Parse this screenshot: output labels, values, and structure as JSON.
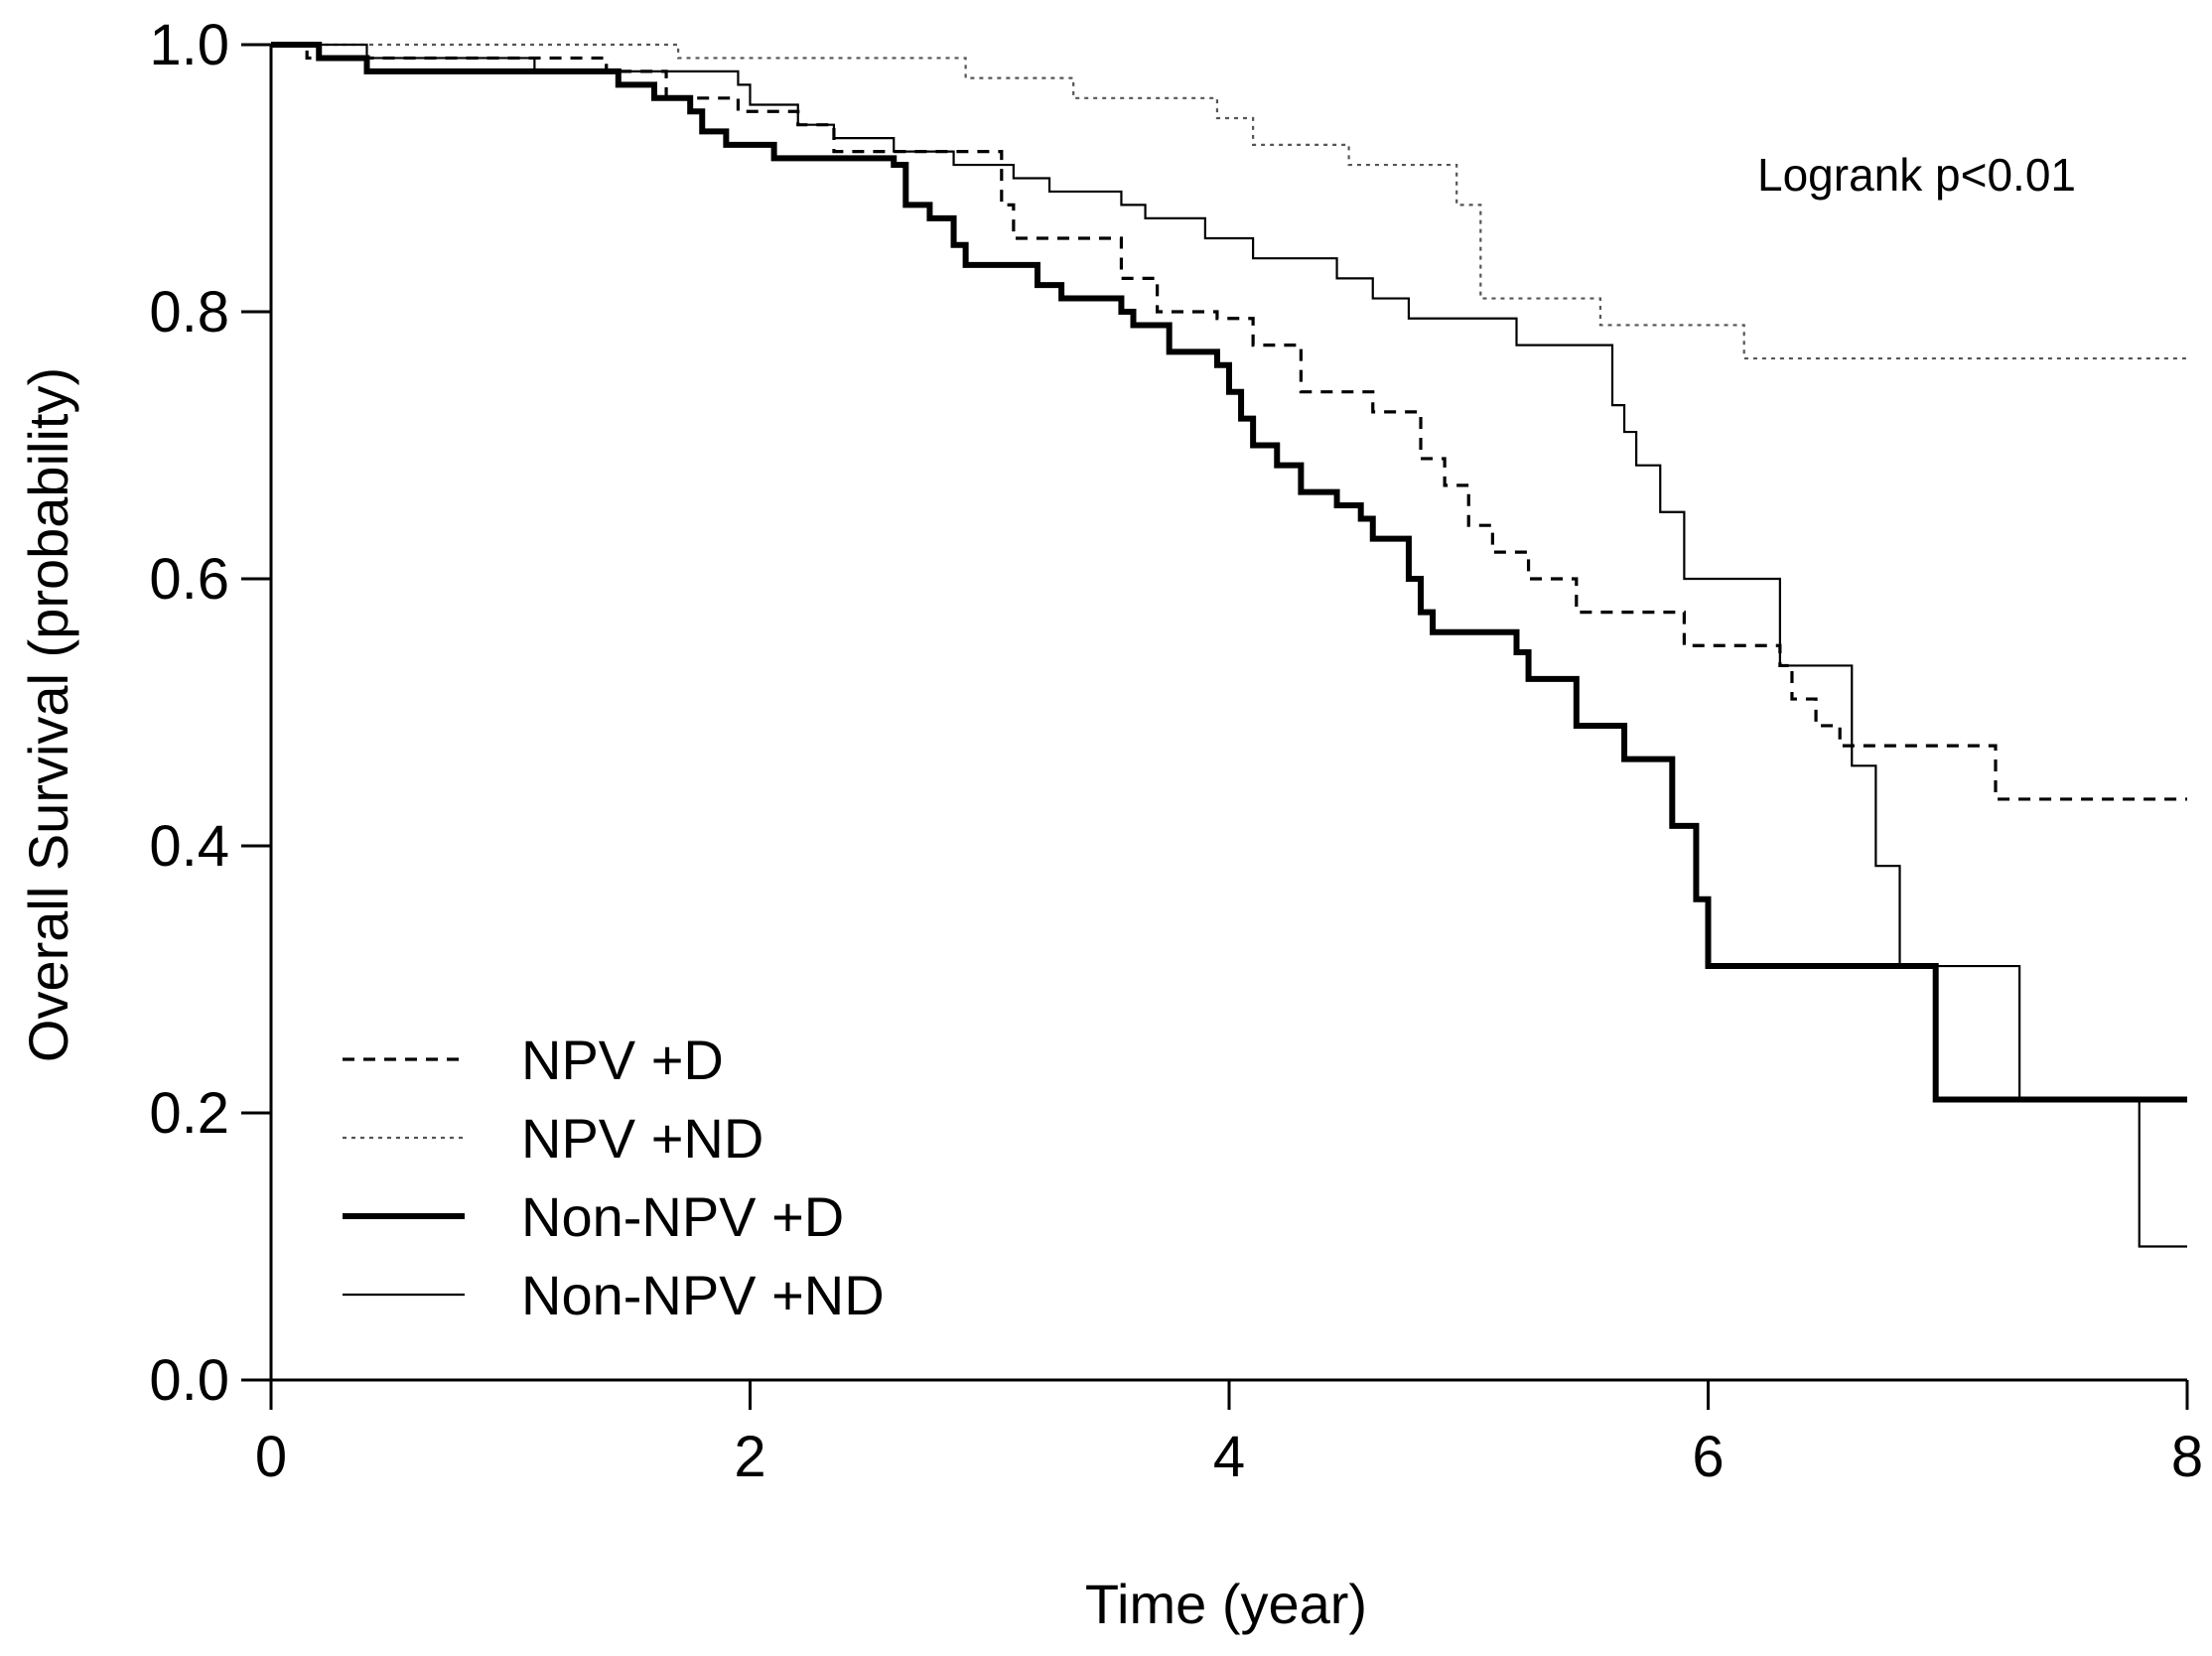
{
  "chart_data": {
    "type": "line",
    "subtype": "kaplan-meier step curves",
    "title": "",
    "xlabel": "Time (year)",
    "ylabel": "Overall Survival (probability)",
    "xlim": [
      0,
      8
    ],
    "ylim": [
      0,
      1
    ],
    "x_ticks": [
      0,
      2,
      4,
      6,
      8
    ],
    "x_tick_labels": [
      "0",
      "2",
      "4",
      "6",
      "8"
    ],
    "y_ticks": [
      0,
      0.2,
      0.4,
      0.6,
      0.8,
      1.0
    ],
    "y_tick_labels": [
      "0.0",
      "0.2",
      "0.4",
      "0.6",
      "0.8",
      "1.0"
    ],
    "grid": false,
    "legend_position": "bottom-left",
    "annotation": "Logrank p<0.01",
    "series": [
      {
        "name": "NPV +D",
        "line_style": "dashed",
        "line_weight": "medium",
        "color": "#000000",
        "points": [
          [
            0,
            1.0
          ],
          [
            0.15,
            0.99
          ],
          [
            1.4,
            0.98
          ],
          [
            1.65,
            0.96
          ],
          [
            1.95,
            0.95
          ],
          [
            2.2,
            0.94
          ],
          [
            2.35,
            0.92
          ],
          [
            2.6,
            0.92
          ],
          [
            2.75,
            0.92
          ],
          [
            3.05,
            0.88
          ],
          [
            3.1,
            0.855
          ],
          [
            3.55,
            0.825
          ],
          [
            3.7,
            0.8
          ],
          [
            3.95,
            0.795
          ],
          [
            4.1,
            0.775
          ],
          [
            4.3,
            0.74
          ],
          [
            4.6,
            0.725
          ],
          [
            4.8,
            0.69
          ],
          [
            4.9,
            0.67
          ],
          [
            5.0,
            0.64
          ],
          [
            5.1,
            0.62
          ],
          [
            5.25,
            0.6
          ],
          [
            5.45,
            0.575
          ],
          [
            5.6,
            0.575
          ],
          [
            5.9,
            0.55
          ],
          [
            6.3,
            0.535
          ],
          [
            6.35,
            0.51
          ],
          [
            6.45,
            0.49
          ],
          [
            6.55,
            0.475
          ],
          [
            7.2,
            0.435
          ],
          [
            8.0,
            0.435
          ]
        ]
      },
      {
        "name": "NPV +ND",
        "line_style": "dotted",
        "line_weight": "thin",
        "color": "#555555",
        "points": [
          [
            0,
            1.0
          ],
          [
            1.7,
            0.99
          ],
          [
            2.9,
            0.975
          ],
          [
            3.35,
            0.96
          ],
          [
            3.95,
            0.945
          ],
          [
            4.1,
            0.925
          ],
          [
            4.5,
            0.91
          ],
          [
            4.95,
            0.88
          ],
          [
            5.05,
            0.81
          ],
          [
            5.55,
            0.79
          ],
          [
            6.15,
            0.765
          ],
          [
            8.0,
            0.765
          ]
        ]
      },
      {
        "name": "Non-NPV +D",
        "line_style": "solid",
        "line_weight": "thick",
        "color": "#000000",
        "points": [
          [
            0,
            1.0
          ],
          [
            0.2,
            0.99
          ],
          [
            0.4,
            0.98
          ],
          [
            1.35,
            0.98
          ],
          [
            1.45,
            0.97
          ],
          [
            1.6,
            0.96
          ],
          [
            1.75,
            0.95
          ],
          [
            1.8,
            0.935
          ],
          [
            1.9,
            0.925
          ],
          [
            2.1,
            0.915
          ],
          [
            2.6,
            0.91
          ],
          [
            2.65,
            0.88
          ],
          [
            2.75,
            0.87
          ],
          [
            2.85,
            0.85
          ],
          [
            2.9,
            0.835
          ],
          [
            3.2,
            0.82
          ],
          [
            3.3,
            0.81
          ],
          [
            3.55,
            0.8
          ],
          [
            3.6,
            0.79
          ],
          [
            3.75,
            0.77
          ],
          [
            3.95,
            0.76
          ],
          [
            4.0,
            0.74
          ],
          [
            4.05,
            0.72
          ],
          [
            4.1,
            0.7
          ],
          [
            4.2,
            0.685
          ],
          [
            4.3,
            0.665
          ],
          [
            4.45,
            0.655
          ],
          [
            4.55,
            0.645
          ],
          [
            4.6,
            0.63
          ],
          [
            4.75,
            0.6
          ],
          [
            4.8,
            0.575
          ],
          [
            4.85,
            0.56
          ],
          [
            5.2,
            0.545
          ],
          [
            5.25,
            0.525
          ],
          [
            5.45,
            0.49
          ],
          [
            5.65,
            0.465
          ],
          [
            5.85,
            0.415
          ],
          [
            5.95,
            0.36
          ],
          [
            6.0,
            0.31
          ],
          [
            6.9,
            0.31
          ],
          [
            6.95,
            0.21
          ],
          [
            8.0,
            0.21
          ]
        ]
      },
      {
        "name": "Non-NPV +ND",
        "line_style": "solid",
        "line_weight": "thin",
        "color": "#000000",
        "points": [
          [
            0,
            1.0
          ],
          [
            0.4,
            0.99
          ],
          [
            1.1,
            0.98
          ],
          [
            1.95,
            0.97
          ],
          [
            2.0,
            0.955
          ],
          [
            2.2,
            0.94
          ],
          [
            2.35,
            0.93
          ],
          [
            2.6,
            0.92
          ],
          [
            2.85,
            0.91
          ],
          [
            3.1,
            0.9
          ],
          [
            3.25,
            0.89
          ],
          [
            3.55,
            0.88
          ],
          [
            3.65,
            0.87
          ],
          [
            3.9,
            0.855
          ],
          [
            4.1,
            0.84
          ],
          [
            4.45,
            0.825
          ],
          [
            4.6,
            0.81
          ],
          [
            4.75,
            0.795
          ],
          [
            5.2,
            0.775
          ],
          [
            5.6,
            0.73
          ],
          [
            5.65,
            0.71
          ],
          [
            5.7,
            0.685
          ],
          [
            5.8,
            0.65
          ],
          [
            5.9,
            0.6
          ],
          [
            6.3,
            0.535
          ],
          [
            6.6,
            0.46
          ],
          [
            6.7,
            0.385
          ],
          [
            6.8,
            0.31
          ],
          [
            7.3,
            0.21
          ],
          [
            7.8,
            0.1
          ],
          [
            8.0,
            0.1
          ]
        ]
      }
    ]
  }
}
